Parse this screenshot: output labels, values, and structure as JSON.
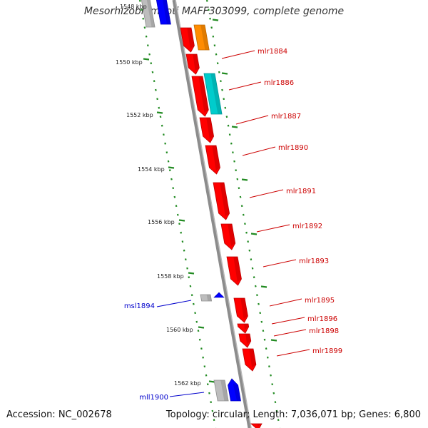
{
  "title": "Mesorhizobium loti MAFF303099, complete genome",
  "footer": {
    "accession": "Accession: NC_002678",
    "topology": "Topology: circular; Length: 7,036,071 bp; Genes: 6,800"
  },
  "colors": {
    "forward_gene": "#ff0000",
    "reverse_gene": "#0000ff",
    "gray_gene": "#bdbdbd",
    "orange_gene": "#ff8c00",
    "cyan_gene": "#00cccc",
    "backbone": "#8c8c8c",
    "ticks": "#228b22",
    "label_forward": "#cc0000",
    "label_reverse": "#0000cc"
  },
  "position_labels": [
    "1548 kbp",
    "1550 kbp",
    "1552 kbp",
    "1554 kbp",
    "1556 kbp",
    "1558 kbp",
    "1560 kbp",
    "1562 kbp"
  ],
  "forward_labels": [
    "mlr1884",
    "mlr1886",
    "mlr1887",
    "mlr1890",
    "mlr1891",
    "mlr1892",
    "mlr1893",
    "mlr1895",
    "mlr1896",
    "mlr1898",
    "mlr1899"
  ],
  "reverse_labels": [
    "msl1894",
    "mll1900"
  ]
}
